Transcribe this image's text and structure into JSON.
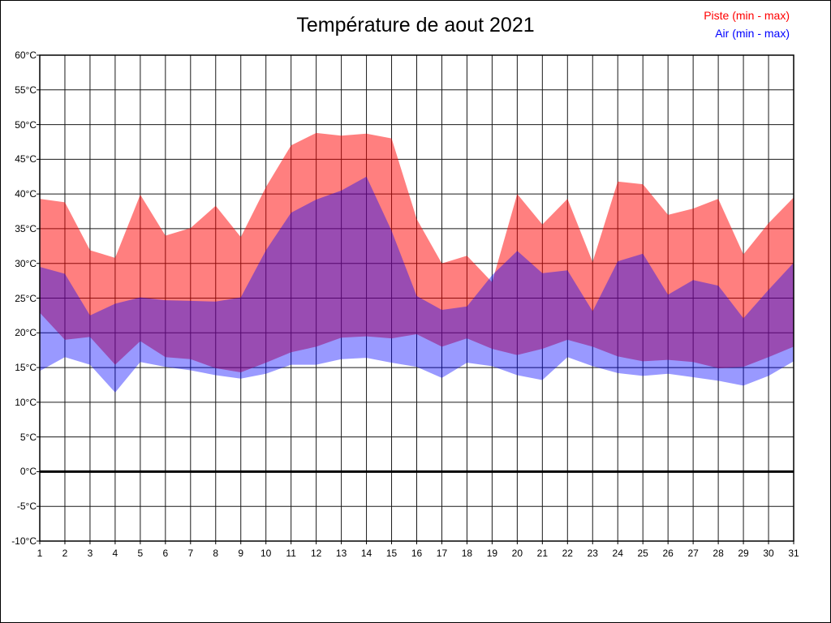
{
  "header": {
    "title": "Température de aout 2021"
  },
  "legend": {
    "piste_label": "Piste (min - max)",
    "air_label": "Air (min - max)",
    "piste_color": "#ff0000",
    "air_color": "#0000ff"
  },
  "chart_data": {
    "type": "area",
    "title": "Température de aout 2021",
    "x_days": [
      1,
      2,
      3,
      4,
      5,
      6,
      7,
      8,
      9,
      10,
      11,
      12,
      13,
      14,
      15,
      16,
      17,
      18,
      19,
      20,
      21,
      22,
      23,
      24,
      25,
      26,
      27,
      28,
      29,
      30,
      31
    ],
    "series": [
      {
        "name": "Piste (min - max)",
        "fill": "rgba(255,0,0,0.5)",
        "max": [
          39.3,
          38.8,
          31.9,
          30.8,
          39.9,
          34.0,
          35.1,
          38.3,
          33.8,
          41.0,
          47.0,
          48.8,
          48.4,
          48.7,
          48.0,
          36.4,
          30.0,
          31.1,
          27.3,
          40.0,
          35.6,
          39.3,
          30.2,
          41.8,
          41.4,
          37.0,
          37.9,
          39.3,
          31.3,
          35.8,
          39.5
        ],
        "min": [
          22.9,
          19.0,
          19.4,
          15.4,
          18.8,
          16.5,
          16.2,
          14.9,
          14.3,
          15.7,
          17.2,
          18.0,
          19.3,
          19.5,
          19.2,
          19.8,
          18.0,
          19.2,
          17.7,
          16.8,
          17.7,
          19.0,
          18.0,
          16.6,
          15.9,
          16.1,
          15.8,
          14.9,
          15.1,
          16.5,
          18.0
        ]
      },
      {
        "name": "Air (min - max)",
        "fill": "rgba(0,0,255,0.4)",
        "max": [
          29.5,
          28.5,
          22.5,
          24.2,
          25.1,
          24.7,
          24.6,
          24.5,
          25.1,
          31.9,
          37.3,
          39.2,
          40.5,
          42.5,
          34.7,
          25.3,
          23.3,
          23.8,
          28.3,
          31.8,
          28.6,
          29.0,
          23.1,
          30.3,
          31.4,
          25.5,
          27.6,
          26.8,
          22.1,
          26.2,
          30.1
        ],
        "min": [
          14.5,
          16.5,
          15.4,
          11.4,
          15.8,
          15.1,
          14.6,
          13.9,
          13.4,
          14.1,
          15.4,
          15.4,
          16.2,
          16.4,
          15.7,
          15.1,
          13.5,
          15.7,
          15.2,
          13.9,
          13.2,
          16.5,
          15.2,
          14.2,
          13.8,
          14.1,
          13.6,
          13.1,
          12.4,
          13.8,
          15.9
        ]
      }
    ],
    "y_tick_labels": [
      "60°C",
      "55°C",
      "50°C",
      "45°C",
      "40°C",
      "35°C",
      "30°C",
      "25°C",
      "20°C",
      "15°C",
      "10°C",
      "5°C",
      "0°C",
      "-5°C",
      "-10°C"
    ],
    "y_tick_values": [
      60,
      55,
      50,
      45,
      40,
      35,
      30,
      25,
      20,
      15,
      10,
      5,
      0,
      -5,
      -10
    ],
    "x_tick_labels": [
      "1",
      "2",
      "3",
      "4",
      "5",
      "6",
      "7",
      "8",
      "9",
      "10",
      "11",
      "12",
      "13",
      "14",
      "15",
      "16",
      "17",
      "18",
      "19",
      "20",
      "21",
      "22",
      "23",
      "24",
      "25",
      "26",
      "27",
      "28",
      "29",
      "30",
      "31"
    ],
    "ylim": [
      -10,
      60
    ],
    "grid": true,
    "zero_line": 0,
    "grid_color": "#1a1a1a",
    "frame_color": "#000000"
  }
}
